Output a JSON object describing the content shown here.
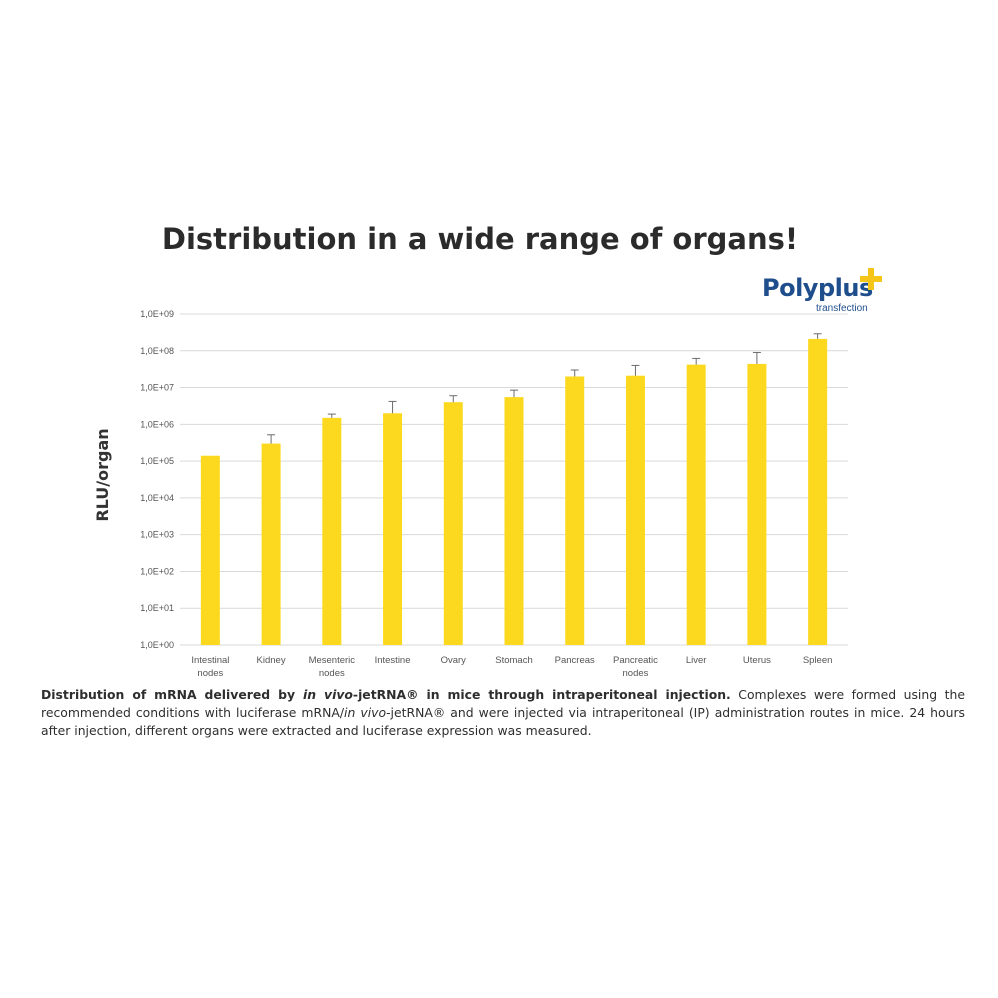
{
  "chart_data": {
    "type": "bar",
    "title": "Distribution in a wide range of organs!",
    "ylabel": "RLU/organ",
    "yscale": "log",
    "ylim": [
      1,
      1000000000
    ],
    "yticks": [
      "1,0E+00",
      "1,0E+01",
      "1,0E+02",
      "1,0E+03",
      "1,0E+04",
      "1,0E+05",
      "1,0E+06",
      "1,0E+07",
      "1,0E+08",
      "1,0E+09"
    ],
    "grid": true,
    "bar_color": "#fcd91f",
    "categories": [
      [
        "Intestinal",
        "nodes"
      ],
      [
        "Kidney"
      ],
      [
        "Mesenteric",
        "nodes"
      ],
      [
        "Intestine"
      ],
      [
        "Ovary"
      ],
      [
        "Stomach"
      ],
      [
        "Pancreas"
      ],
      [
        "Pancreatic",
        "nodes"
      ],
      [
        "Liver"
      ],
      [
        "Uterus"
      ],
      [
        "Spleen"
      ]
    ],
    "values": [
      140000,
      300000,
      1500000,
      2000000,
      4000000,
      5500000,
      20000000,
      21000000,
      42000000,
      44000000,
      210000000
    ],
    "error_upper": [
      null,
      520000,
      1900000,
      4200000,
      6000000,
      8500000,
      30000000,
      40000000,
      62000000,
      90000000,
      290000000
    ]
  },
  "logo": {
    "brand": "Polyplus",
    "sub": "transfection"
  },
  "caption": {
    "bold_1": "Distribution of mRNA delivered by ",
    "bold_italic": "in vivo",
    "bold_2": "-jetRNA® in mice through intraperitoneal injection.",
    "text_1": " Complexes were formed using the recommended conditions with luciferase mRNA/",
    "italic_2": "in vivo",
    "text_2": "-jetRNA® and were injected via intraperitoneal (IP) administration routes in mice. 24 hours after injection, different organs were extracted and luciferase expression was measured."
  }
}
